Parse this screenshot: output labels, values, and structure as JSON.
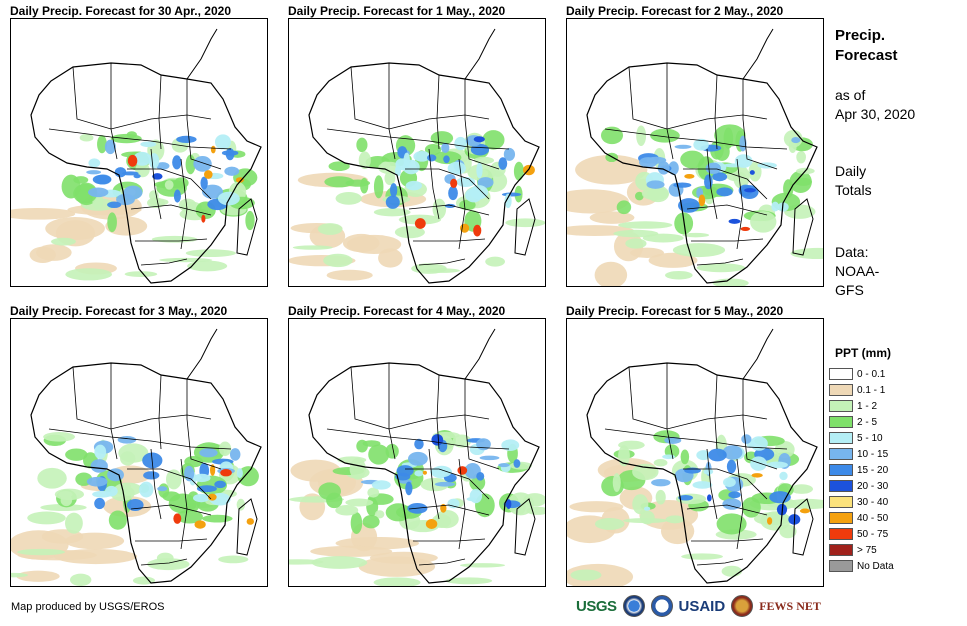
{
  "panels": [
    {
      "title": "Daily Precip. Forecast for 30 Apr., 2020"
    },
    {
      "title": "Daily Precip. Forecast for 1 May., 2020"
    },
    {
      "title": "Daily Precip. Forecast for 2 May., 2020"
    },
    {
      "title": "Daily Precip. Forecast for 3 May., 2020"
    },
    {
      "title": "Daily Precip. Forecast for 4 May., 2020"
    },
    {
      "title": "Daily Precip. Forecast for 5 May., 2020"
    }
  ],
  "side": {
    "title_line1": "Precip.",
    "title_line2": "Forecast",
    "asof_line1": "as of",
    "asof_line2": "Apr 30, 2020",
    "daily_line1": "Daily",
    "daily_line2": "Totals",
    "data_line1": "Data:",
    "data_line2": "NOAA-",
    "data_line3": "GFS"
  },
  "legend": {
    "title": "PPT (mm)",
    "items": [
      {
        "label": "0 - 0.1",
        "color": "#ffffff"
      },
      {
        "label": "0.1 - 1",
        "color": "#eed8b6"
      },
      {
        "label": "1 - 2",
        "color": "#c4f2b8"
      },
      {
        "label": "2 - 5",
        "color": "#7fe06a"
      },
      {
        "label": "5 - 10",
        "color": "#b4eef5"
      },
      {
        "label": "10 - 15",
        "color": "#77b5ee"
      },
      {
        "label": "15 - 20",
        "color": "#3d8ae8"
      },
      {
        "label": "20 - 30",
        "color": "#1c52dc"
      },
      {
        "label": "30 - 40",
        "color": "#fbe27c"
      },
      {
        "label": "40 - 50",
        "color": "#f4a10f"
      },
      {
        "label": "50 - 75",
        "color": "#ef3b0c"
      },
      {
        "label": "> 75",
        "color": "#a0211b"
      },
      {
        "label": "No Data",
        "color": "#9a9a9a"
      }
    ]
  },
  "footer": {
    "credit": "Map produced by USGS/EROS"
  },
  "logos": {
    "usgs": "USGS",
    "usaid": "USAID",
    "fews": "FEWS NET"
  }
}
